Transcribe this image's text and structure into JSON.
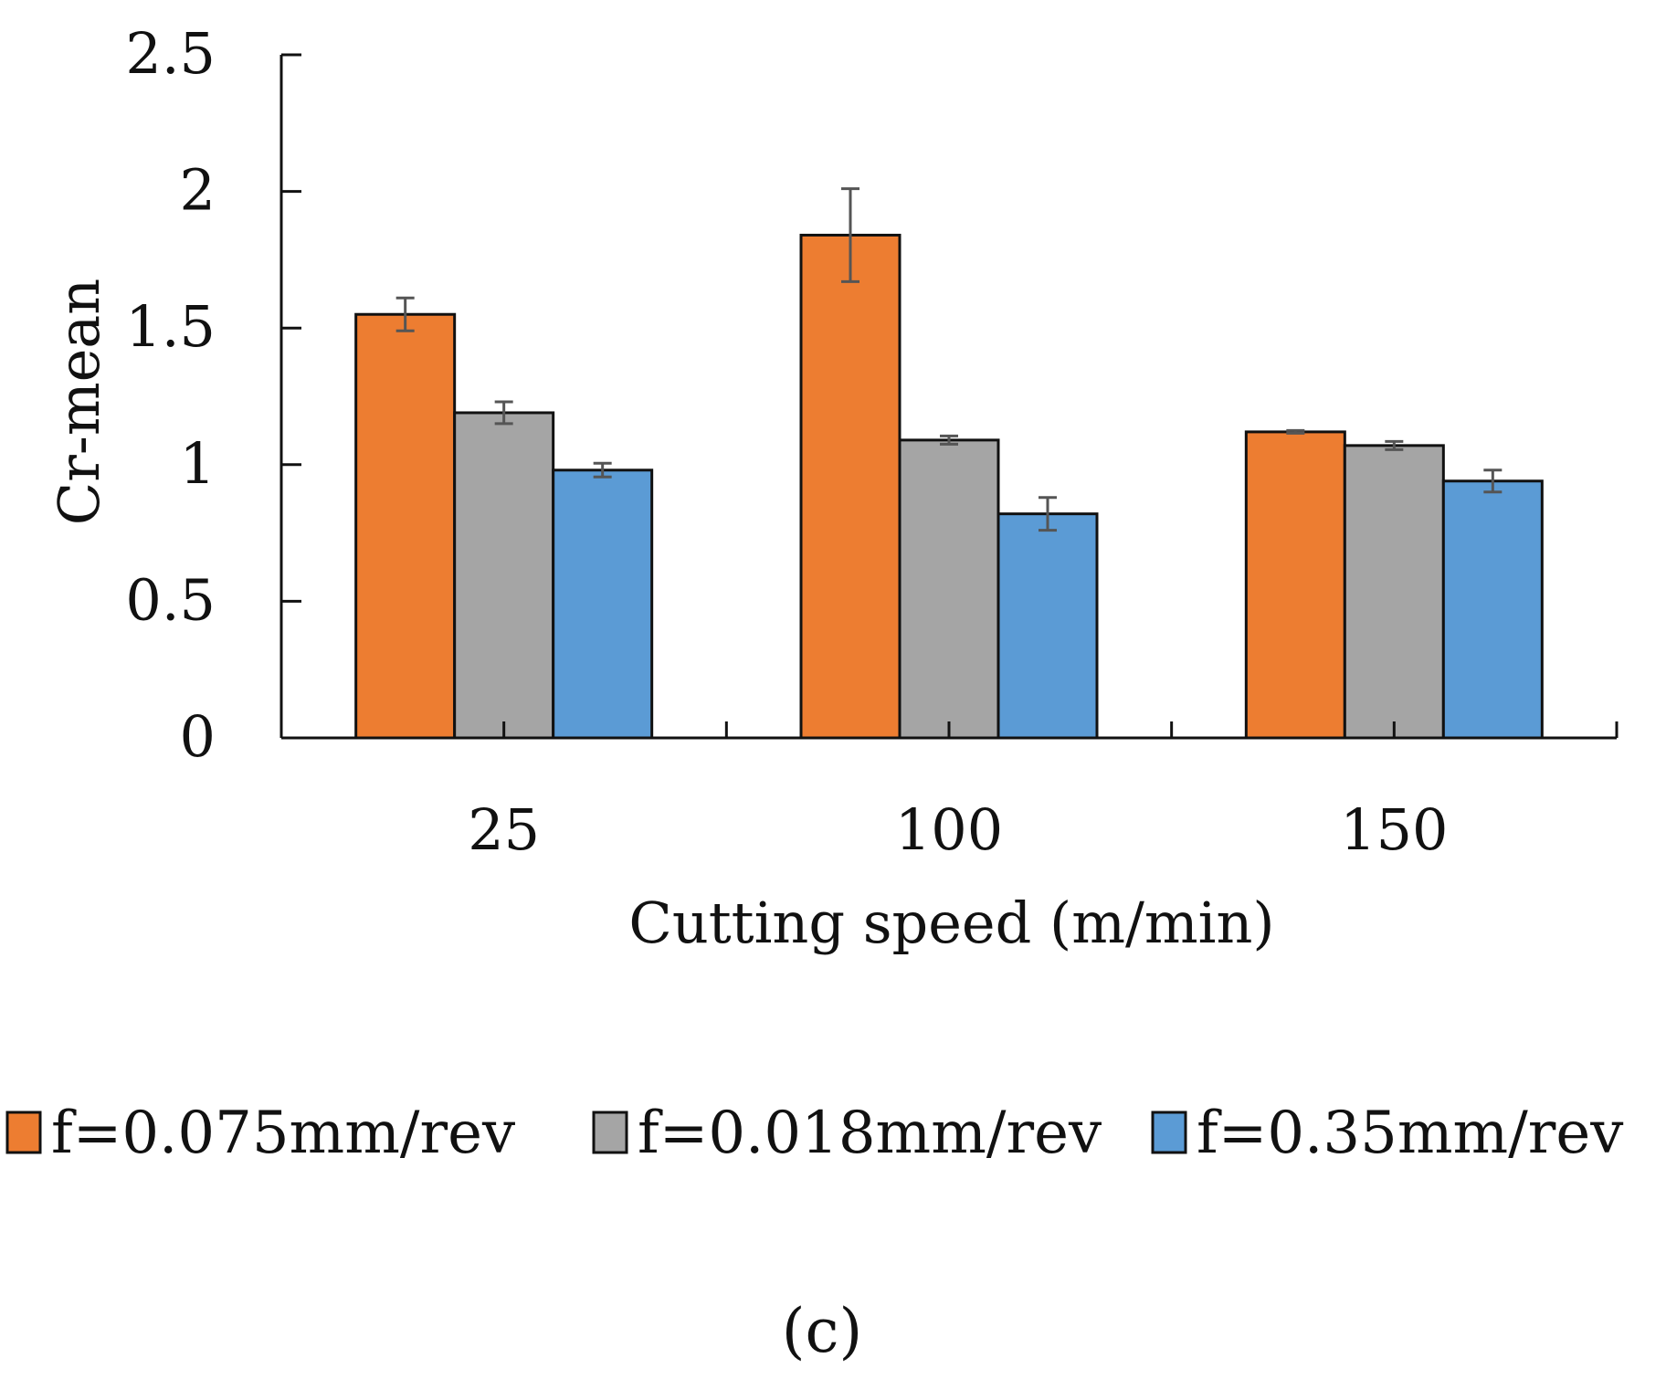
{
  "chart_data": {
    "type": "bar",
    "title": "",
    "xlabel": "Cutting speed (m/min)",
    "ylabel": "Cr-mean",
    "categories": [
      "25",
      "100",
      "150"
    ],
    "ylim": [
      0,
      2.5
    ],
    "yticks": [
      "0",
      "0.5",
      "1",
      "1.5",
      "2",
      "2.5"
    ],
    "grid": false,
    "legend_position": "bottom",
    "series": [
      {
        "name": "f=0.075mm/rev",
        "color": "#ED7D31",
        "values": [
          1.55,
          1.84,
          1.12
        ],
        "errors": [
          0.06,
          0.17,
          0.005
        ]
      },
      {
        "name": "f=0.018mm/rev",
        "color": "#A5A5A5",
        "values": [
          1.19,
          1.09,
          1.07
        ],
        "errors": [
          0.04,
          0.015,
          0.015
        ]
      },
      {
        "name": "f=0.35mm/rev",
        "color": "#5B9BD5",
        "values": [
          0.98,
          0.82,
          0.94
        ],
        "errors": [
          0.025,
          0.06,
          0.04
        ]
      }
    ],
    "panel_label": "(c)"
  }
}
